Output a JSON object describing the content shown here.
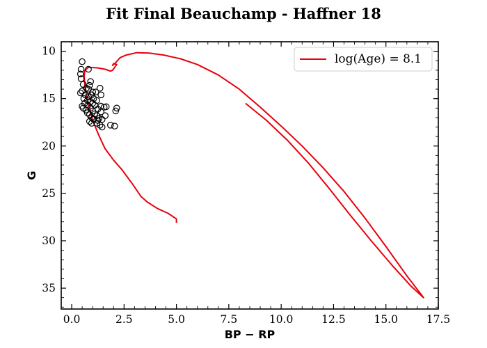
{
  "chart_data": {
    "type": "scatter",
    "title": "Fit Final Beauchamp - Haffner 18",
    "xlabel": "BP − RP",
    "ylabel": "G",
    "xlim": [
      -0.5,
      17.5
    ],
    "ylim": [
      37.2,
      9.0
    ],
    "y_inverted": true,
    "x_ticks": [
      "0.0",
      "2.5",
      "5.0",
      "7.5",
      "10.0",
      "12.5",
      "15.0",
      "17.5"
    ],
    "x_tick_values": [
      0,
      2.5,
      5,
      7.5,
      10,
      12.5,
      15,
      17.5
    ],
    "y_ticks": [
      "10",
      "15",
      "20",
      "25",
      "30",
      "35"
    ],
    "y_tick_values": [
      10,
      15,
      20,
      25,
      30,
      35
    ],
    "grid": false,
    "legend_position": "top-right",
    "colors": {
      "isochrone": "#e8000b",
      "points": "#000000"
    },
    "series": [
      {
        "type": "scatter",
        "marker": "open-circle",
        "points": [
          [
            0.5,
            11.1
          ],
          [
            0.45,
            11.9
          ],
          [
            0.8,
            11.9
          ],
          [
            0.42,
            12.4
          ],
          [
            0.45,
            12.9
          ],
          [
            0.9,
            13.2
          ],
          [
            0.55,
            13.5
          ],
          [
            0.85,
            13.6
          ],
          [
            0.7,
            13.9
          ],
          [
            1.35,
            13.9
          ],
          [
            0.8,
            14.0
          ],
          [
            0.5,
            14.2
          ],
          [
            0.42,
            14.4
          ],
          [
            1.0,
            14.3
          ],
          [
            0.65,
            14.6
          ],
          [
            0.95,
            14.6
          ],
          [
            1.15,
            14.3
          ],
          [
            1.4,
            14.6
          ],
          [
            0.8,
            14.8
          ],
          [
            0.58,
            15.0
          ],
          [
            1.05,
            15.0
          ],
          [
            0.75,
            15.2
          ],
          [
            0.9,
            15.3
          ],
          [
            1.2,
            15.2
          ],
          [
            0.62,
            15.5
          ],
          [
            1.0,
            15.5
          ],
          [
            0.5,
            15.8
          ],
          [
            0.78,
            15.7
          ],
          [
            1.1,
            15.7
          ],
          [
            1.4,
            15.8
          ],
          [
            0.55,
            16.0
          ],
          [
            0.9,
            16.0
          ],
          [
            1.25,
            16.1
          ],
          [
            1.55,
            15.9
          ],
          [
            1.65,
            15.85
          ],
          [
            2.15,
            16.0
          ],
          [
            0.68,
            16.2
          ],
          [
            1.0,
            16.3
          ],
          [
            1.4,
            16.4
          ],
          [
            2.1,
            16.3
          ],
          [
            0.75,
            16.5
          ],
          [
            1.1,
            16.6
          ],
          [
            0.85,
            16.7
          ],
          [
            1.2,
            16.8
          ],
          [
            1.6,
            16.8
          ],
          [
            0.95,
            17.0
          ],
          [
            1.3,
            17.1
          ],
          [
            1.05,
            17.2
          ],
          [
            0.85,
            17.4
          ],
          [
            1.25,
            17.3
          ],
          [
            1.45,
            17.2
          ],
          [
            0.95,
            17.6
          ],
          [
            1.2,
            17.6
          ],
          [
            1.35,
            17.8
          ],
          [
            1.45,
            18.0
          ],
          [
            1.85,
            17.8
          ],
          [
            2.05,
            17.9
          ]
        ]
      },
      {
        "type": "line",
        "name": "log(Age) = 8.1",
        "x": [
          5.0,
          5.0,
          4.6,
          4.1,
          3.6,
          3.3,
          2.9,
          2.4,
          2.0,
          1.6,
          1.3,
          1.0,
          0.85,
          0.7,
          0.62,
          0.6,
          0.63,
          0.8,
          1.2,
          1.6,
          1.85,
          1.95,
          2.05,
          2.15,
          2.0,
          1.95,
          2.1,
          2.3,
          2.6,
          3.1,
          3.7,
          4.4,
          5.2,
          6.0,
          7.0,
          8.0,
          9.0,
          10.0,
          11.0,
          12.0,
          13.0,
          14.0,
          15.0,
          16.0,
          16.8,
          16.2,
          15.3,
          14.3,
          13.3,
          12.3,
          11.3,
          10.3,
          9.3,
          8.3
        ],
        "y": [
          28.1,
          27.7,
          27.1,
          26.6,
          25.9,
          25.3,
          24.0,
          22.5,
          21.5,
          20.3,
          18.9,
          17.3,
          16.0,
          14.6,
          13.4,
          12.6,
          12.0,
          11.7,
          11.75,
          11.9,
          12.1,
          12.0,
          11.7,
          11.4,
          11.3,
          11.5,
          11.2,
          10.7,
          10.4,
          10.15,
          10.2,
          10.4,
          10.8,
          11.4,
          12.5,
          14.0,
          15.9,
          17.9,
          20.0,
          22.3,
          24.8,
          27.6,
          30.6,
          33.7,
          36.0,
          34.8,
          32.6,
          30.0,
          27.3,
          24.5,
          21.8,
          19.4,
          17.3,
          15.5
        ]
      }
    ]
  }
}
